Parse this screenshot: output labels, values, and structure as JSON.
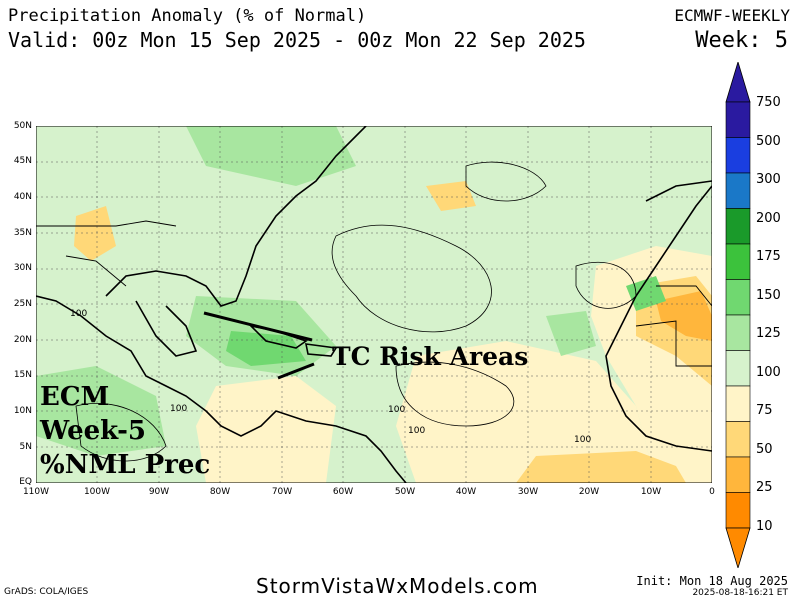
{
  "header": {
    "title": "Precipitation Anomaly (% of Normal)",
    "valid": "Valid: 00z Mon 15 Sep 2025 - 00z Mon 22 Sep 2025",
    "model": "ECMWF-WEEKLY",
    "week": "Week: 5"
  },
  "axes": {
    "lat_labels": [
      "50N",
      "45N",
      "40N",
      "35N",
      "30N",
      "25N",
      "20N",
      "15N",
      "10N",
      "5N",
      "EQ"
    ],
    "lon_labels": [
      "110W",
      "100W",
      "90W",
      "80W",
      "70W",
      "60W",
      "50W",
      "40W",
      "30W",
      "20W",
      "10W",
      "0"
    ]
  },
  "colorbar": {
    "labels": [
      "750",
      "500",
      "300",
      "200",
      "175",
      "150",
      "125",
      "100",
      "75",
      "50",
      "25",
      "10"
    ],
    "colors": [
      "#2a1aa0",
      "#1a3ee0",
      "#1a78c8",
      "#1a9a2a",
      "#3cc23c",
      "#70d870",
      "#a8e6a0",
      "#d6f2cc",
      "#fff4c8",
      "#ffd878",
      "#ffb63c",
      "#ff8a00"
    ]
  },
  "contour_labels": [
    "100",
    "100",
    "100",
    "100",
    "100"
  ],
  "annotations": {
    "tc_risk": "TC Risk Areas",
    "ecm_lines": [
      "ECM",
      "Week-5",
      "%NML Prec"
    ]
  },
  "footer": {
    "credit": "GrADS: COLA/IGES",
    "site": "StormVistaWxModels.com",
    "init": "Init: Mon 18 Aug 2025",
    "stamp": "2025-08-18-16:21 ET"
  }
}
